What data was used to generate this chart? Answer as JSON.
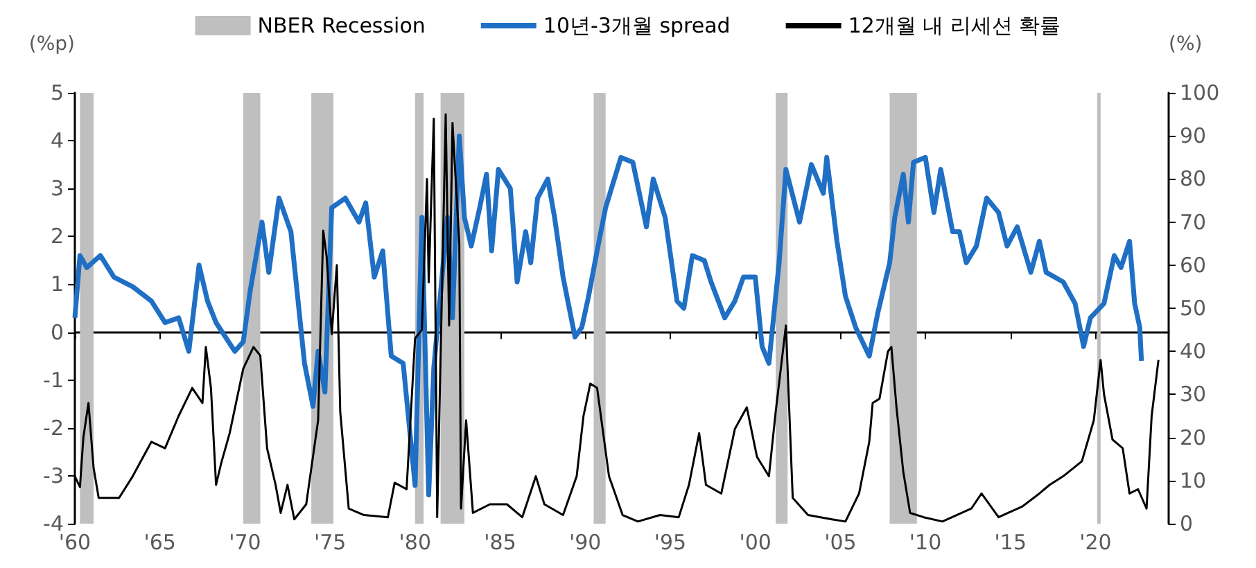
{
  "chart_data": {
    "type": "line",
    "ylabel": "(%p)",
    "y2label": "(%)",
    "legend": "top",
    "marker": "none",
    "line_style": "solid",
    "xlim": [
      1960,
      2024.3
    ],
    "xticks": [
      {
        "value": 1960,
        "label": "'60"
      },
      {
        "value": 1965,
        "label": "'65"
      },
      {
        "value": 1970,
        "label": "'70"
      },
      {
        "value": 1975,
        "label": "'75"
      },
      {
        "value": 1980,
        "label": "'80"
      },
      {
        "value": 1985,
        "label": "'85"
      },
      {
        "value": 1990,
        "label": "'90"
      },
      {
        "value": 1995,
        "label": "'95"
      },
      {
        "value": 2000,
        "label": "'00"
      },
      {
        "value": 2005,
        "label": "'05"
      },
      {
        "value": 2010,
        "label": "'10"
      },
      {
        "value": 2015,
        "label": "'15"
      },
      {
        "value": 2020,
        "label": "'20"
      }
    ],
    "ylim": [
      -4,
      5
    ],
    "yticks": [
      -4,
      -3,
      -2,
      -1,
      0,
      1,
      2,
      3,
      4,
      5
    ],
    "y2lim": [
      0,
      100
    ],
    "y2ticks": [
      0,
      10,
      20,
      30,
      40,
      50,
      60,
      70,
      80,
      90,
      100
    ],
    "bands": [
      {
        "axis": "x",
        "from": 1960.3,
        "to": 1961.1,
        "label": "NBER Recession",
        "color": "#bfbfbf"
      },
      {
        "axis": "x",
        "from": 1969.9,
        "to": 1970.9,
        "color": "#bfbfbf"
      },
      {
        "axis": "x",
        "from": 1973.9,
        "to": 1975.2,
        "color": "#bfbfbf"
      },
      {
        "axis": "x",
        "from": 1980.0,
        "to": 1980.5,
        "color": "#bfbfbf"
      },
      {
        "axis": "x",
        "from": 1981.5,
        "to": 1982.9,
        "color": "#bfbfbf"
      },
      {
        "axis": "x",
        "from": 1990.5,
        "to": 1991.2,
        "color": "#bfbfbf"
      },
      {
        "axis": "x",
        "from": 2001.2,
        "to": 2001.9,
        "color": "#bfbfbf"
      },
      {
        "axis": "x",
        "from": 2007.9,
        "to": 2009.5,
        "color": "#bfbfbf"
      },
      {
        "axis": "x",
        "from": 2020.1,
        "to": 2020.3,
        "color": "#bfbfbf"
      }
    ],
    "series": [
      {
        "name": "10년-3개월 spread",
        "color": "#1f6fc5",
        "x": [
          1960.0,
          1960.3,
          1960.7,
          1961.5,
          1962.3,
          1963.4,
          1964.5,
          1965.3,
          1966.1,
          1966.7,
          1967.3,
          1967.8,
          1968.3,
          1969.4,
          1969.9,
          1970.3,
          1971.0,
          1971.4,
          1972.0,
          1972.7,
          1973.5,
          1974.0,
          1974.3,
          1974.7,
          1975.1,
          1975.9,
          1976.7,
          1977.1,
          1977.6,
          1978.1,
          1978.6,
          1979.3,
          1980.0,
          1980.4,
          1980.8,
          1981.1,
          1981.9,
          1982.2,
          1982.6,
          1982.9,
          1983.3,
          1983.8,
          1984.2,
          1984.5,
          1984.9,
          1985.6,
          1986.0,
          1986.5,
          1986.8,
          1987.2,
          1987.8,
          1988.2,
          1988.7,
          1989.4,
          1989.8,
          1990.2,
          1990.7,
          1991.2,
          1992.1,
          1992.8,
          1993.6,
          1994.0,
          1994.7,
          1995.4,
          1995.8,
          1996.3,
          1997.0,
          1997.4,
          1998.2,
          1998.8,
          1999.3,
          2000.0,
          2000.4,
          2000.8,
          2001.4,
          2001.8,
          2002.6,
          2003.3,
          2004.0,
          2004.2,
          2004.8,
          2005.3,
          2005.9,
          2006.7,
          2007.2,
          2007.9,
          2008.2,
          2008.7,
          2009.0,
          2009.3,
          2010.0,
          2010.5,
          2010.9,
          2011.6,
          2012.0,
          2012.4,
          2013.0,
          2013.6,
          2014.3,
          2014.8,
          2015.4,
          2016.2,
          2016.7,
          2017.1,
          2018.1,
          2018.8,
          2019.3,
          2019.7,
          2020.5,
          2021.1,
          2021.5,
          2022.0,
          2022.3,
          2022.6,
          2022.7
        ],
        "values": [
          0.3,
          1.6,
          1.35,
          1.6,
          1.15,
          0.95,
          0.65,
          0.2,
          0.3,
          -0.4,
          1.4,
          0.65,
          0.2,
          -0.4,
          -0.2,
          0.85,
          2.3,
          1.25,
          2.8,
          2.1,
          -0.65,
          -1.55,
          -0.4,
          -1.25,
          2.6,
          2.8,
          2.3,
          2.7,
          1.15,
          1.7,
          -0.5,
          -0.65,
          -3.2,
          2.4,
          -3.4,
          -0.75,
          2.4,
          0.3,
          4.1,
          2.4,
          1.8,
          2.6,
          3.3,
          1.7,
          3.4,
          3.0,
          1.05,
          2.1,
          1.45,
          2.8,
          3.2,
          2.4,
          1.15,
          -0.1,
          0.1,
          0.75,
          1.7,
          2.6,
          3.65,
          3.55,
          2.2,
          3.2,
          2.4,
          0.65,
          0.5,
          1.6,
          1.5,
          1.05,
          0.3,
          0.65,
          1.15,
          1.15,
          -0.3,
          -0.65,
          1.45,
          3.4,
          2.3,
          3.5,
          2.9,
          3.65,
          1.9,
          0.75,
          0.1,
          -0.5,
          0.4,
          1.45,
          2.4,
          3.3,
          2.3,
          3.55,
          3.65,
          2.5,
          3.4,
          2.1,
          2.1,
          1.45,
          1.8,
          2.8,
          2.5,
          1.8,
          2.2,
          1.25,
          1.9,
          1.25,
          1.05,
          0.6,
          -0.3,
          0.3,
          0.6,
          1.6,
          1.35,
          1.9,
          0.6,
          0.1,
          -0.6
        ]
      },
      {
        "name": "12개월 내 리세션 확률",
        "color": "#000000",
        "axis": "y2",
        "x": [
          1960.0,
          1960.3,
          1960.5,
          1960.8,
          1961.1,
          1961.4,
          1962.6,
          1963.4,
          1964.5,
          1965.3,
          1966.1,
          1966.9,
          1967.5,
          1967.7,
          1968.0,
          1968.3,
          1968.6,
          1969.1,
          1969.9,
          1970.5,
          1970.9,
          1971.3,
          1971.8,
          1972.1,
          1972.5,
          1972.9,
          1973.6,
          1974.3,
          1974.6,
          1974.8,
          1975.1,
          1975.4,
          1975.6,
          1976.1,
          1977.0,
          1978.4,
          1978.8,
          1979.5,
          1979.7,
          1980.0,
          1980.4,
          1980.7,
          1980.8,
          1981.1,
          1981.3,
          1981.8,
          1982.0,
          1982.2,
          1982.6,
          1982.7,
          1983.0,
          1983.4,
          1984.4,
          1985.4,
          1986.3,
          1987.1,
          1987.6,
          1988.7,
          1989.5,
          1989.9,
          1990.3,
          1990.7,
          1991.4,
          1992.2,
          1993.1,
          1994.4,
          1995.5,
          1996.1,
          1996.7,
          1997.1,
          1998.0,
          1998.8,
          1999.5,
          2000.1,
          2000.8,
          2001.2,
          2001.8,
          2002.2,
          2003.1,
          2004.5,
          2005.3,
          2006.1,
          2006.7,
          2006.9,
          2007.3,
          2007.8,
          2008.0,
          2008.3,
          2008.7,
          2009.1,
          2009.9,
          2011.0,
          2012.7,
          2013.3,
          2014.3,
          2015.7,
          2016.7,
          2017.3,
          2018.1,
          2019.2,
          2019.9,
          2020.3,
          2020.5,
          2021.0,
          2021.6,
          2022.0,
          2022.5,
          2023.0,
          2023.3,
          2023.7
        ],
        "values": [
          11,
          8.5,
          20,
          28,
          13,
          6,
          6,
          11,
          19,
          17.5,
          25,
          31.5,
          28,
          41,
          31.5,
          9,
          14,
          21,
          36,
          41,
          39,
          17.5,
          9,
          2.5,
          9,
          1,
          4.5,
          24,
          68,
          62,
          44,
          60,
          26,
          3.5,
          2,
          1.5,
          9.5,
          8,
          22,
          43,
          45,
          80,
          56,
          94,
          1.5,
          95,
          46,
          93,
          65,
          3.5,
          24,
          2.5,
          4.5,
          4.5,
          1.5,
          11,
          4.5,
          2,
          11,
          25,
          32.5,
          31.5,
          11,
          2,
          0.5,
          2,
          1.5,
          9,
          21,
          9,
          7,
          22,
          27,
          15.5,
          11,
          26,
          46,
          6,
          2,
          1,
          0.5,
          7,
          19,
          28,
          29,
          40,
          41,
          27,
          12,
          2.5,
          1.5,
          0.5,
          3.5,
          7,
          1.5,
          4,
          7,
          9,
          11,
          14.5,
          24,
          38,
          30,
          19.5,
          17.5,
          7,
          8,
          3.5,
          25,
          38
        ]
      }
    ]
  }
}
